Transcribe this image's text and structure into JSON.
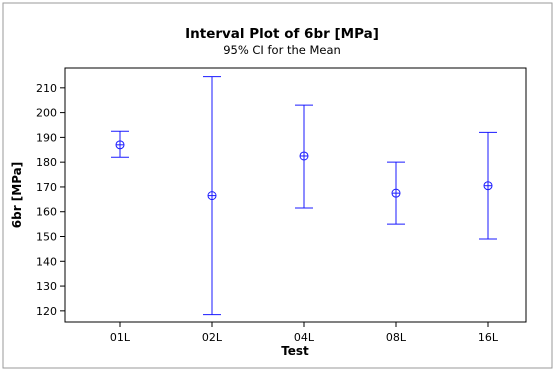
{
  "chart_data": {
    "type": "interval",
    "title": "Interval Plot of 6br [MPa]",
    "subtitle": "95% CI for the Mean",
    "xlabel": "Test",
    "ylabel": "6br [MPa]",
    "categories": [
      "01L",
      "02L",
      "04L",
      "08L",
      "16L"
    ],
    "means": [
      187,
      166.5,
      182.5,
      167.5,
      170.5
    ],
    "lower": [
      182,
      118.5,
      161.5,
      155,
      149
    ],
    "upper": [
      192.5,
      214.5,
      203,
      180,
      192
    ],
    "yticks": [
      120,
      130,
      140,
      150,
      160,
      170,
      180,
      190,
      200,
      210
    ],
    "ylim": [
      115.5,
      218
    ],
    "grid": false,
    "colors": {
      "interval": "#1a1aff",
      "frame": "#000000",
      "background_outer": "#ffffff"
    }
  }
}
